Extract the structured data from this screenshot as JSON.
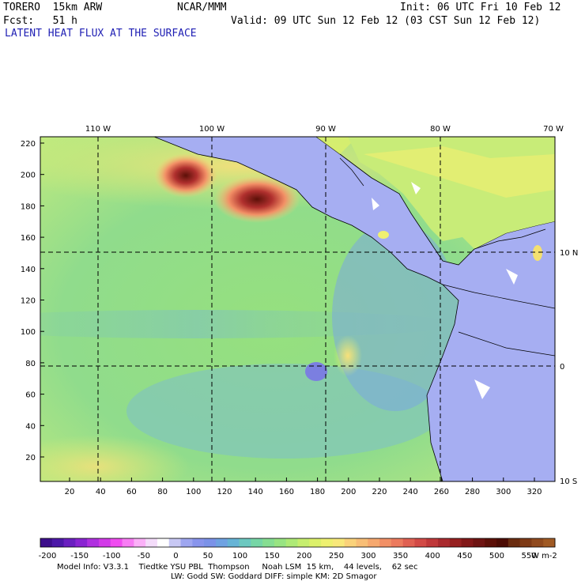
{
  "header": {
    "model": "TORERO  15km ARW",
    "org": "NCAR/MMM",
    "init": "Init: 06 UTC Fri 10 Feb 12",
    "fcst": "Fcst:   51 h",
    "valid": "Valid: 09 UTC Sun 12 Feb 12 (03 CST Sun 12 Feb 12)",
    "field": "LATENT HEAT FLUX AT THE SURFACE"
  },
  "map": {
    "lon_labels": [
      "110 W",
      "100 W",
      "90 W",
      "80 W",
      "70 W"
    ],
    "lat_labels": [
      "10 N",
      "0",
      "10 S"
    ],
    "y_grid_ticks": [
      "220",
      "200",
      "180",
      "160",
      "140",
      "120",
      "100",
      "80",
      "60",
      "40",
      "20"
    ],
    "x_grid_ticks": [
      "20",
      "40",
      "60",
      "80",
      "100",
      "120",
      "140",
      "160",
      "180",
      "200",
      "220",
      "240",
      "260",
      "280",
      "300",
      "320"
    ]
  },
  "colorbar": {
    "labels": [
      "-200",
      "-150",
      "-100",
      "-50",
      "0",
      "50",
      "100",
      "150",
      "200",
      "250",
      "300",
      "350",
      "400",
      "450",
      "500",
      "550"
    ],
    "units": "W m-2",
    "colors": [
      "#3d0f8c",
      "#4c18a8",
      "#6a1fc0",
      "#8a24d2",
      "#b030e0",
      "#d23ae8",
      "#f04cf0",
      "#f87cf4",
      "#fbb0f8",
      "#f4dcfa",
      "#ffffff",
      "#c8c8f4",
      "#9ea6f0",
      "#8894ec",
      "#7b92e8",
      "#6fa2e2",
      "#66b4d6",
      "#6cc8c0",
      "#76d6a6",
      "#86de92",
      "#98e482",
      "#aeea76",
      "#c6ee6e",
      "#dcf06a",
      "#eef070",
      "#f8e87a",
      "#fad27a",
      "#f8be76",
      "#f6a86e",
      "#f29066",
      "#ec7a5e",
      "#e06052",
      "#d24a46",
      "#c0383a",
      "#aa2a2e",
      "#962020",
      "#821818",
      "#6e1412",
      "#5c1008",
      "#4c0c04",
      "#6a2c10",
      "#7e3a16",
      "#904a1e",
      "#a05a24"
    ]
  },
  "footer": {
    "line1": "Model Info: V3.3.1    Tiedtke YSU PBL  Thompson     Noah LSM  15 km,    44 levels,    62 sec",
    "line2": "LW: Godd SW: Goddard DIFF: simple KM: 2D Smagor"
  }
}
